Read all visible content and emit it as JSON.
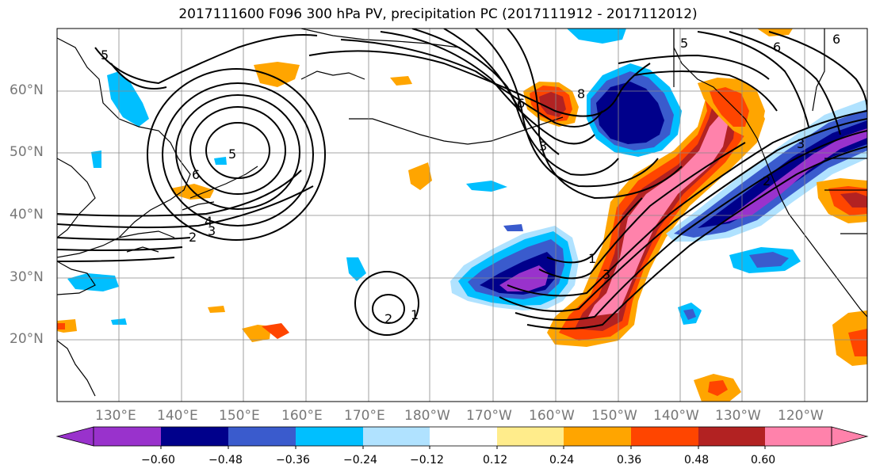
{
  "title": "2017111600 F096 300 hPa PV, precipitation PC (2017111912 - 2017112012)",
  "lat_labels": [
    "60°N",
    "50°N",
    "40°N",
    "30°N",
    "20°N"
  ],
  "lon_labels": [
    "130°E",
    "140°E",
    "150°E",
    "160°E",
    "170°E",
    "180°W",
    "170°W",
    "160°W",
    "150°W",
    "140°W",
    "130°W",
    "120°W"
  ],
  "colorbar": {
    "ticks": [
      "−0.60",
      "−0.48",
      "−0.36",
      "−0.24",
      "−0.12",
      "0.12",
      "0.24",
      "0.36",
      "0.48",
      "0.60"
    ],
    "colors": [
      "#9932CC",
      "#00008B",
      "#3A5BCD",
      "#00BFFF",
      "#B0E2FF",
      "#FFFFFF",
      "#FFEC8B",
      "#FFA500",
      "#FF4500",
      "#B22222",
      "#FF82AB"
    ]
  },
  "contour_labels": [
    "5",
    "6",
    "4",
    "3",
    "2",
    "8",
    "6",
    "3",
    "5",
    "6",
    "3",
    "1",
    "2",
    "3",
    "1",
    "2",
    "5",
    "6"
  ]
}
